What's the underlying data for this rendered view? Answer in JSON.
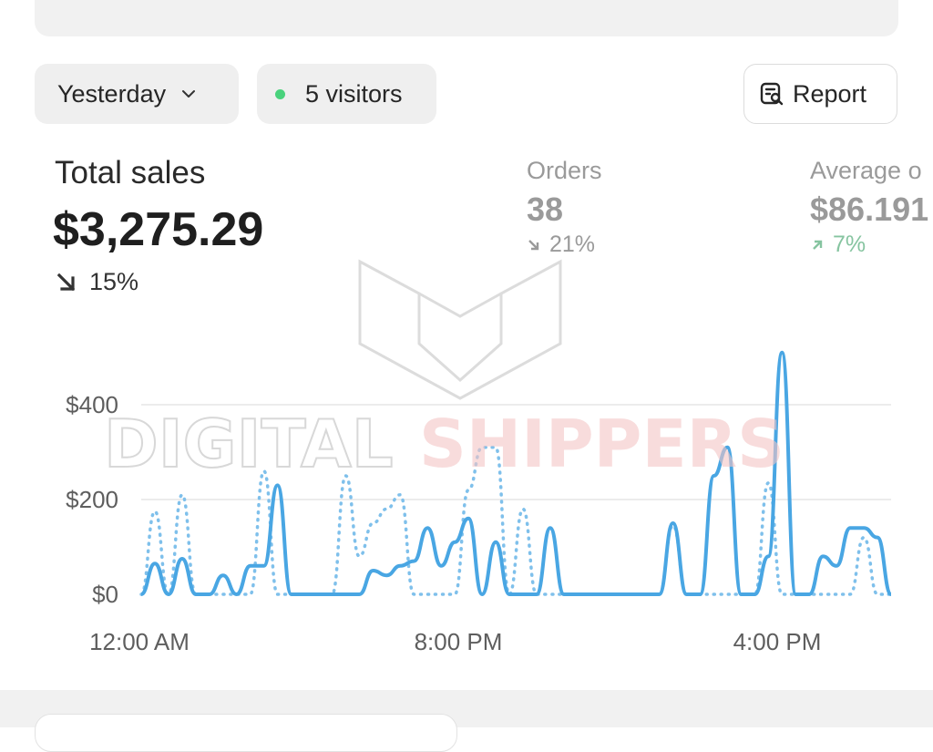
{
  "toolbar": {
    "date_label": "Yesterday",
    "visitors_label": "5 visitors",
    "report_label": "Report",
    "live_dot_color": "#49d27c"
  },
  "metrics": {
    "total_sales": {
      "label": "Total sales",
      "value": "$3,275.29",
      "change": "15%",
      "direction": "down"
    },
    "orders": {
      "label": "Orders",
      "value": "38",
      "change": "21%",
      "direction": "down"
    },
    "average": {
      "label": "Average o",
      "value": "$86.191",
      "change": "7%",
      "direction": "up"
    }
  },
  "icons": [
    "chevron-down-icon",
    "report-icon",
    "arrow-down-right-icon",
    "arrow-up-right-icon"
  ],
  "chart_data": {
    "type": "line",
    "ylim": [
      0,
      500
    ],
    "yticks": [
      {
        "value": 0,
        "label": "$0"
      },
      {
        "value": 200,
        "label": "$200"
      },
      {
        "value": 400,
        "label": "$400"
      }
    ],
    "xticks": [
      {
        "label": "12:00 AM"
      },
      {
        "label": "8:00 PM"
      },
      {
        "label": "4:00 PM"
      }
    ],
    "colors": {
      "current": "#49a6e3",
      "previous": "#7fc0eb",
      "grid": "#e6e6e6"
    },
    "series": [
      {
        "style": "solid",
        "values": [
          0,
          65,
          0,
          75,
          0,
          0,
          40,
          0,
          60,
          60,
          230,
          0,
          0,
          0,
          0,
          0,
          0,
          50,
          40,
          60,
          70,
          140,
          60,
          110,
          160,
          0,
          110,
          0,
          0,
          0,
          140,
          0,
          0,
          0,
          0,
          0,
          0,
          0,
          0,
          150,
          0,
          0,
          250,
          310,
          0,
          0,
          80,
          510,
          0,
          0,
          80,
          60,
          140,
          140,
          120,
          0
        ]
      },
      {
        "style": "dotted",
        "values": [
          0,
          175,
          0,
          210,
          0,
          0,
          0,
          0,
          0,
          260,
          0,
          0,
          0,
          0,
          0,
          250,
          80,
          150,
          180,
          210,
          0,
          0,
          0,
          0,
          220,
          310,
          310,
          0,
          180,
          0,
          0,
          0,
          0,
          0,
          0,
          0,
          0,
          0,
          0,
          145,
          0,
          0,
          0,
          0,
          0,
          0,
          235,
          0,
          0,
          0,
          0,
          0,
          0,
          120,
          0,
          0
        ]
      }
    ]
  }
}
